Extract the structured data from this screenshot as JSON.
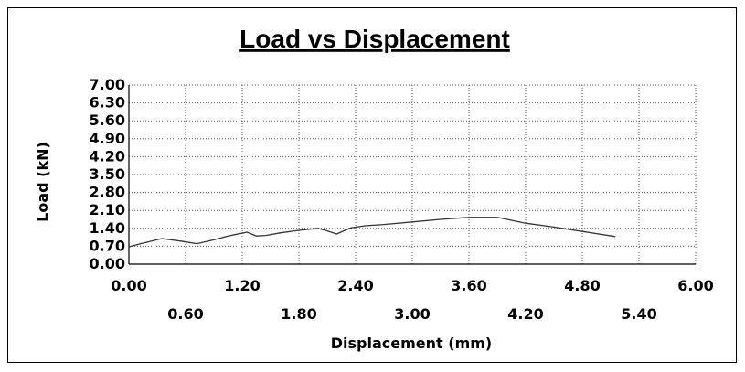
{
  "chart_data": {
    "type": "line",
    "title": "Load vs Displacement",
    "xlabel": "Displacement (mm)",
    "ylabel": "Load (kN)",
    "xlim": [
      0,
      6
    ],
    "ylim": [
      0,
      7
    ],
    "x_ticks": [
      "0.00",
      "0.60",
      "1.20",
      "1.80",
      "2.40",
      "3.00",
      "3.60",
      "4.20",
      "4.80",
      "5.40",
      "6.00"
    ],
    "y_ticks": [
      "0.00",
      "0.70",
      "1.40",
      "2.10",
      "2.80",
      "3.50",
      "4.20",
      "4.90",
      "5.60",
      "6.30",
      "7.00"
    ],
    "grid": true,
    "legend": "none",
    "series": [
      {
        "color": "#333333",
        "x": [
          0.0,
          0.15,
          0.35,
          0.55,
          0.72,
          0.9,
          1.05,
          1.25,
          1.35,
          1.45,
          1.6,
          1.8,
          2.0,
          2.1,
          2.2,
          2.35,
          2.5,
          2.7,
          3.0,
          3.3,
          3.6,
          3.9,
          4.2,
          4.5,
          4.8,
          5.15
        ],
        "y": [
          0.68,
          0.82,
          1.0,
          0.9,
          0.8,
          0.95,
          1.1,
          1.25,
          1.1,
          1.12,
          1.22,
          1.32,
          1.4,
          1.3,
          1.18,
          1.42,
          1.5,
          1.55,
          1.65,
          1.75,
          1.83,
          1.83,
          1.6,
          1.45,
          1.28,
          1.08
        ]
      }
    ]
  }
}
